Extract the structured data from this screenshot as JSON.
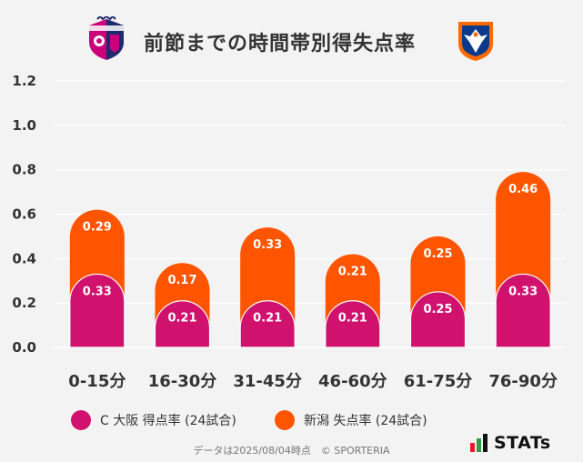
{
  "title": "前節までの時間帯別得失点率",
  "logos": {
    "left": {
      "name": "Cerezo Osaka crest",
      "colors": [
        "#c9007a",
        "#1e2a6e"
      ]
    },
    "right": {
      "name": "Albirex Niigata crest",
      "colors": [
        "#ff6a00",
        "#0b3a8c"
      ]
    }
  },
  "legend": {
    "series1": "C 大阪 得点率 (24試合)",
    "series2": "新潟 失点率 (24試合)"
  },
  "footer": "データは2025/08/04時点　© SPORTERIA",
  "brand": "STATs",
  "chart_data": {
    "type": "bar",
    "stacked": true,
    "categories": [
      "0-15分",
      "16-30分",
      "31-45分",
      "46-60分",
      "61-75分",
      "76-90分"
    ],
    "series": [
      {
        "name": "C 大阪 得点率 (24試合)",
        "color": "#d0116e",
        "values": [
          0.33,
          0.21,
          0.21,
          0.21,
          0.25,
          0.33
        ]
      },
      {
        "name": "新潟 失点率 (24試合)",
        "color": "#ff5500",
        "values": [
          0.29,
          0.17,
          0.33,
          0.21,
          0.25,
          0.46
        ]
      }
    ],
    "yticks": [
      "0.0",
      "0.2",
      "0.4",
      "0.6",
      "0.8",
      "1.0",
      "1.2"
    ],
    "ylim": [
      0,
      1.2
    ],
    "grid": true
  }
}
